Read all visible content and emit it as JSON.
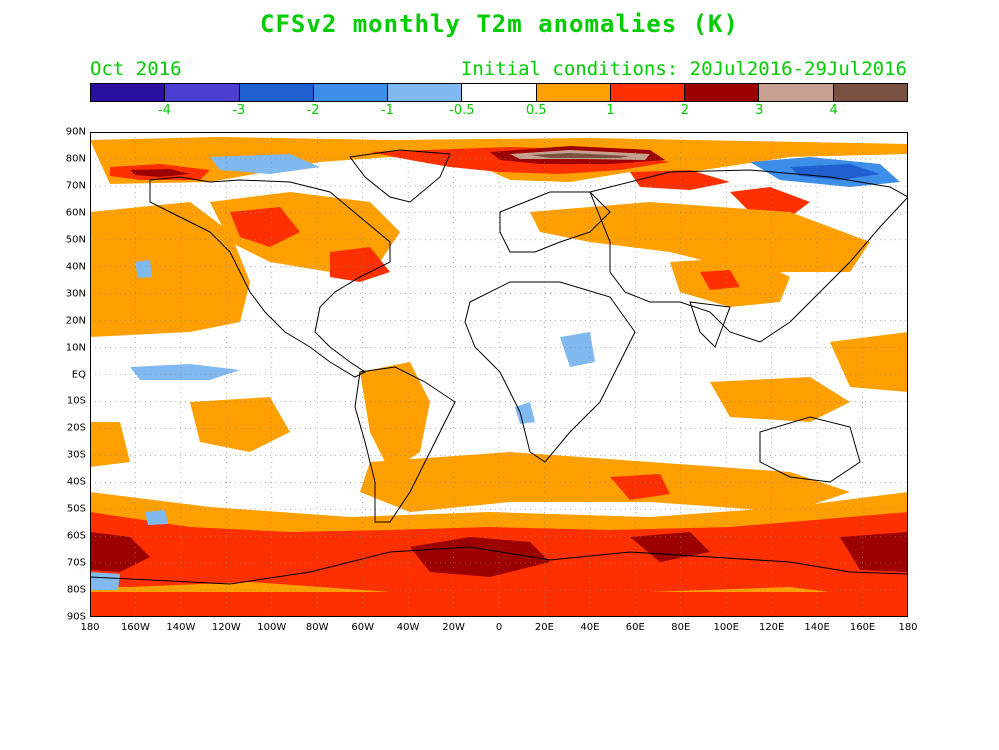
{
  "header": {
    "title": "CFSv2 monthly T2m anomalies (K)",
    "forecast_month": "Oct 2016",
    "initial_conditions": "Initial conditions: 20Jul2016-29Jul2016"
  },
  "colorbar": {
    "colors": [
      "#2b0fa0",
      "#4a3fd0",
      "#1f5fd0",
      "#3c8ee8",
      "#80b8f0",
      "#ffffff",
      "#ffa000",
      "#ff3000",
      "#9c0000",
      "#c8a090",
      "#7a5040"
    ],
    "labels": [
      "-4",
      "-3",
      "-2",
      "-1",
      "-0.5",
      "0.5",
      "1",
      "2",
      "3",
      "4"
    ]
  },
  "map": {
    "lat_labels": [
      "90N",
      "80N",
      "70N",
      "60N",
      "50N",
      "40N",
      "30N",
      "20N",
      "10N",
      "EQ",
      "10S",
      "20S",
      "30S",
      "40S",
      "50S",
      "60S",
      "70S",
      "80S",
      "90S"
    ],
    "lon_labels": [
      "180",
      "160W",
      "140W",
      "120W",
      "100W",
      "80W",
      "60W",
      "40W",
      "20W",
      "0",
      "20E",
      "40E",
      "60E",
      "80E",
      "100E",
      "120E",
      "140E",
      "160E",
      "180"
    ],
    "colors": {
      "warm1": "#ffa000",
      "warm2": "#ff3000",
      "warm3": "#9c0000",
      "warm4": "#c8a090",
      "warm5": "#7a5040",
      "cool1": "#80b8f0",
      "cool2": "#3c8ee8",
      "cool3": "#1f5fd0"
    }
  }
}
